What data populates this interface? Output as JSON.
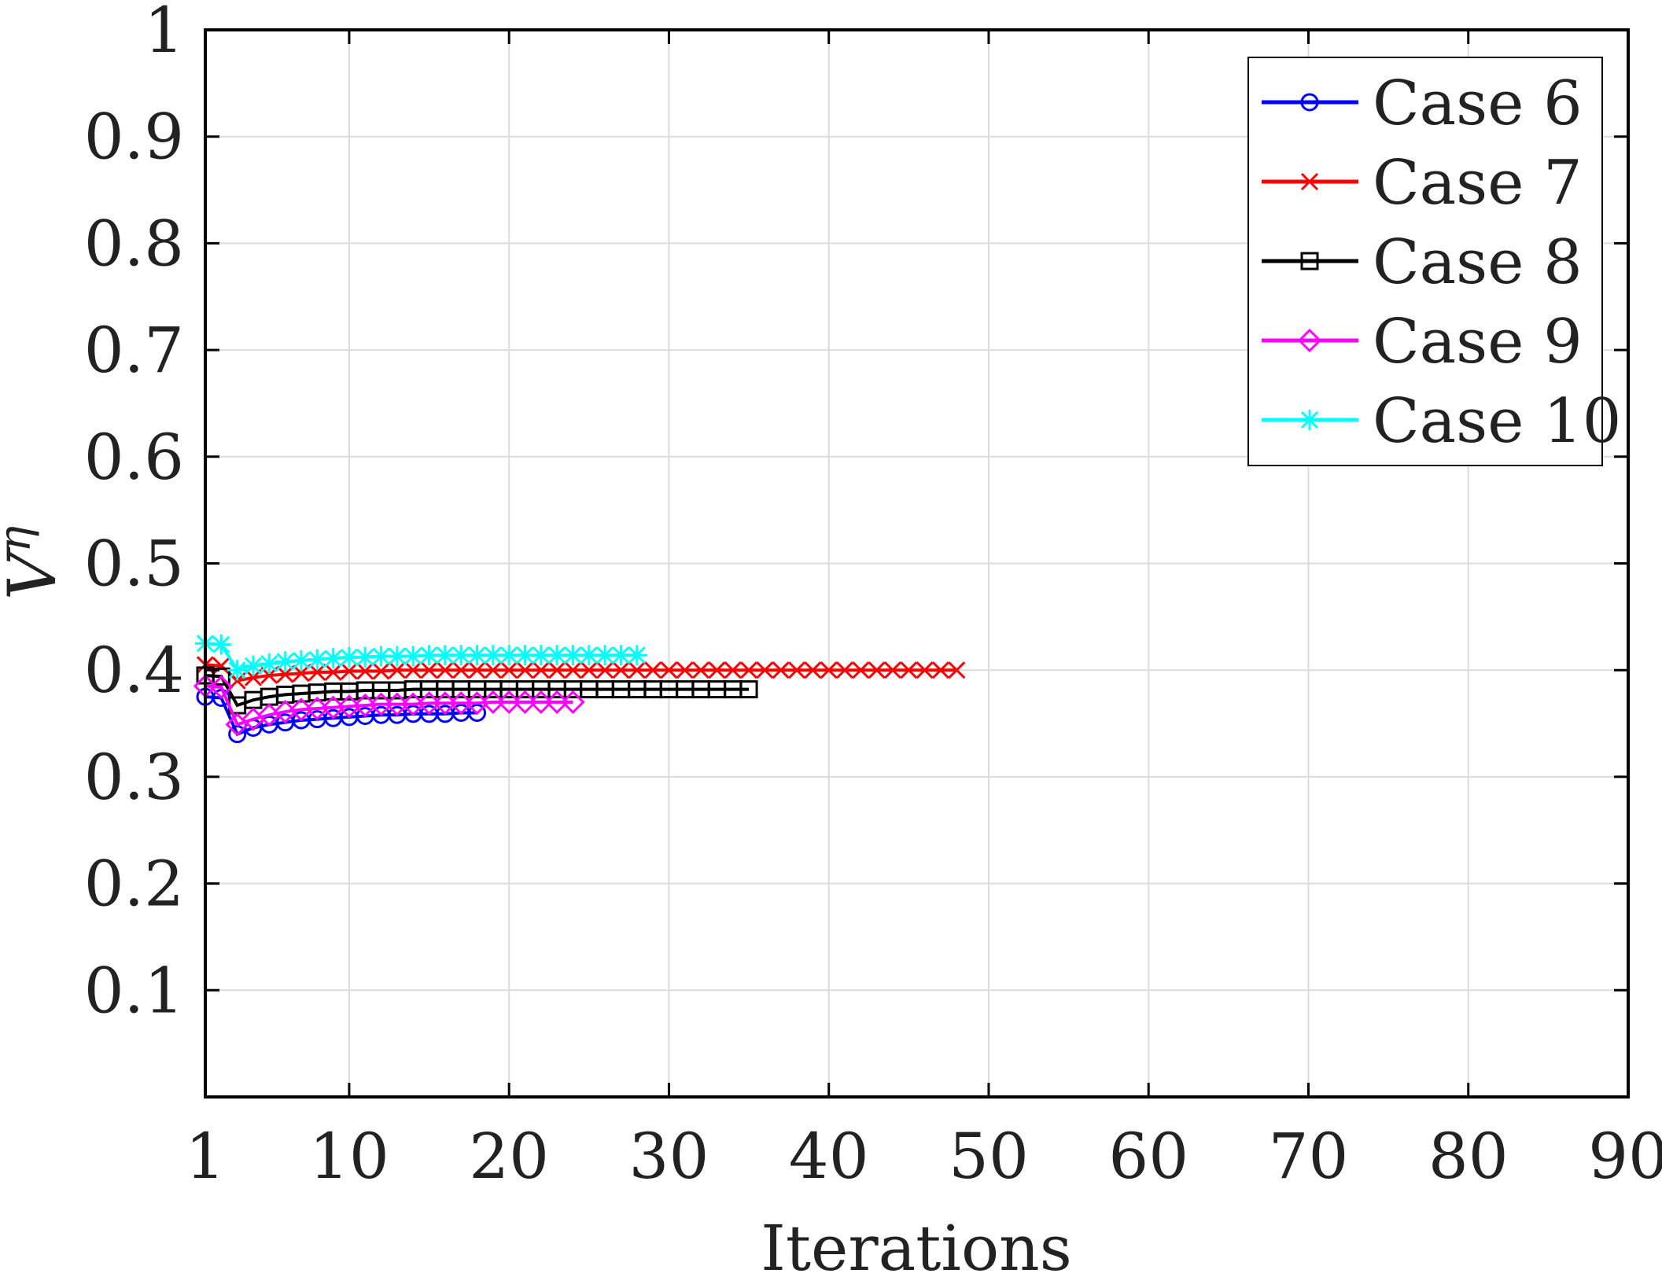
{
  "chart_data": {
    "type": "line",
    "title": "",
    "xlabel": "Iterations",
    "ylabel_base": "V",
    "ylabel_sup": "η",
    "xlim": [
      1,
      90
    ],
    "ylim": [
      0,
      1
    ],
    "xticks": [
      1,
      10,
      20,
      30,
      40,
      50,
      60,
      70,
      80,
      90
    ],
    "xtick_labels": [
      "1",
      "10",
      "20",
      "30",
      "40",
      "50",
      "60",
      "70",
      "80",
      "90"
    ],
    "yticks": [
      0.1,
      0.2,
      0.3,
      0.4,
      0.5,
      0.6,
      0.7,
      0.8,
      0.9,
      1
    ],
    "ytick_labels": [
      "0.1",
      "0.2",
      "0.3",
      "0.4",
      "0.5",
      "0.6",
      "0.7",
      "0.8",
      "0.9",
      "1"
    ],
    "grid": true,
    "legend_position": "top-right",
    "series": [
      {
        "name": "Case 6",
        "color": "#0000ff",
        "marker": "circle",
        "x": [
          1,
          2,
          3,
          4,
          5,
          6,
          7,
          8,
          9,
          10,
          11,
          12,
          13,
          14,
          15,
          16,
          17,
          18
        ],
        "y": [
          0.375,
          0.374,
          0.34,
          0.346,
          0.349,
          0.351,
          0.353,
          0.354,
          0.355,
          0.356,
          0.357,
          0.358,
          0.358,
          0.359,
          0.359,
          0.359,
          0.36,
          0.36
        ]
      },
      {
        "name": "Case 7",
        "color": "#ff0000",
        "marker": "x",
        "x": [
          1,
          2,
          3,
          4,
          5,
          6,
          7,
          8,
          9,
          10,
          11,
          12,
          13,
          14,
          15,
          16,
          17,
          18,
          19,
          20,
          21,
          22,
          23,
          24,
          25,
          26,
          27,
          28,
          29,
          30,
          31,
          32,
          33,
          34,
          35,
          36,
          37,
          38,
          39,
          40,
          41,
          42,
          43,
          44,
          45,
          46,
          47,
          48
        ],
        "y": [
          0.405,
          0.404,
          0.39,
          0.393,
          0.395,
          0.396,
          0.397,
          0.398,
          0.398,
          0.399,
          0.399,
          0.399,
          0.4,
          0.4,
          0.4,
          0.4,
          0.4,
          0.4,
          0.4,
          0.4,
          0.4,
          0.4,
          0.4,
          0.4,
          0.4,
          0.4,
          0.4,
          0.4,
          0.4,
          0.4,
          0.4,
          0.4,
          0.4,
          0.4,
          0.4,
          0.4,
          0.4,
          0.4,
          0.4,
          0.4,
          0.4,
          0.4,
          0.4,
          0.4,
          0.4,
          0.4,
          0.4,
          0.4
        ]
      },
      {
        "name": "Case 8",
        "color": "#000000",
        "marker": "square",
        "x": [
          1,
          2,
          3,
          4,
          5,
          6,
          7,
          8,
          9,
          10,
          11,
          12,
          13,
          14,
          15,
          16,
          17,
          18,
          19,
          20,
          21,
          22,
          23,
          24,
          25,
          26,
          27,
          28,
          29,
          30,
          31,
          32,
          33,
          34,
          35
        ],
        "y": [
          0.395,
          0.394,
          0.367,
          0.372,
          0.375,
          0.377,
          0.378,
          0.379,
          0.38,
          0.38,
          0.381,
          0.381,
          0.381,
          0.382,
          0.382,
          0.382,
          0.382,
          0.382,
          0.382,
          0.382,
          0.382,
          0.382,
          0.382,
          0.382,
          0.382,
          0.382,
          0.382,
          0.382,
          0.382,
          0.382,
          0.382,
          0.382,
          0.382,
          0.382,
          0.382
        ]
      },
      {
        "name": "Case 9",
        "color": "#ff00ff",
        "marker": "diamond",
        "x": [
          1,
          2,
          3,
          4,
          5,
          6,
          7,
          8,
          9,
          10,
          11,
          12,
          13,
          14,
          15,
          16,
          17,
          18,
          19,
          20,
          21,
          22,
          23,
          24
        ],
        "y": [
          0.385,
          0.384,
          0.349,
          0.354,
          0.358,
          0.361,
          0.363,
          0.364,
          0.365,
          0.366,
          0.367,
          0.368,
          0.368,
          0.368,
          0.369,
          0.369,
          0.369,
          0.369,
          0.37,
          0.37,
          0.37,
          0.37,
          0.37,
          0.37
        ]
      },
      {
        "name": "Case 10",
        "color": "#00ffff",
        "marker": "asterisk",
        "x": [
          1,
          2,
          3,
          4,
          5,
          6,
          7,
          8,
          9,
          10,
          11,
          12,
          13,
          14,
          15,
          16,
          17,
          18,
          19,
          20,
          21,
          22,
          23,
          24,
          25,
          26,
          27,
          28
        ],
        "y": [
          0.425,
          0.424,
          0.4,
          0.404,
          0.406,
          0.408,
          0.409,
          0.41,
          0.411,
          0.412,
          0.412,
          0.413,
          0.413,
          0.413,
          0.414,
          0.414,
          0.414,
          0.414,
          0.414,
          0.414,
          0.414,
          0.414,
          0.414,
          0.414,
          0.414,
          0.414,
          0.414,
          0.414
        ]
      }
    ]
  }
}
